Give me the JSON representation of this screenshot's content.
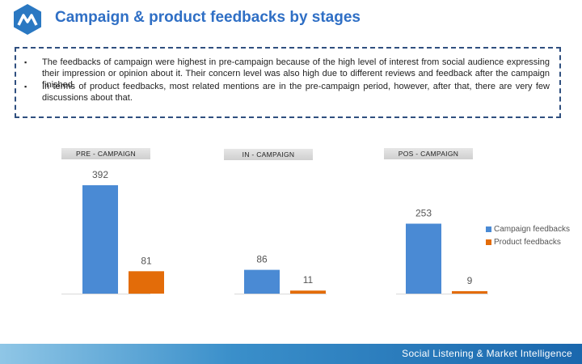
{
  "header": {
    "title": "Campaign & product feedbacks by stages"
  },
  "notes": {
    "bullets": [
      "The feedbacks of  campaign were highest in pre-campaign because of the high level of interest from social audience expressing their impression or opinion about it. Their concern level was also high due to different reviews and feedback after the campaign finished.",
      "In terms of product feedbacks, most related mentions are in the pre-campaign period, however, after that, there are very few discussions about that."
    ]
  },
  "chart_data": {
    "type": "bar",
    "title": "",
    "categories": [
      "PRE - CAMPAIGN",
      "IN - CAMPAIGN",
      "POS - CAMPAIGN"
    ],
    "series": [
      {
        "name": "Campaign feedbacks",
        "color": "#4a8ad4",
        "values": [
          392,
          86,
          253
        ]
      },
      {
        "name": "Product feedbacks",
        "color": "#e36c09",
        "values": [
          81,
          11,
          9
        ]
      }
    ],
    "ylim": [
      0,
      392
    ],
    "grid": false,
    "legend": "right"
  },
  "footer": {
    "text": "Social Listening & Market Intelligence"
  }
}
